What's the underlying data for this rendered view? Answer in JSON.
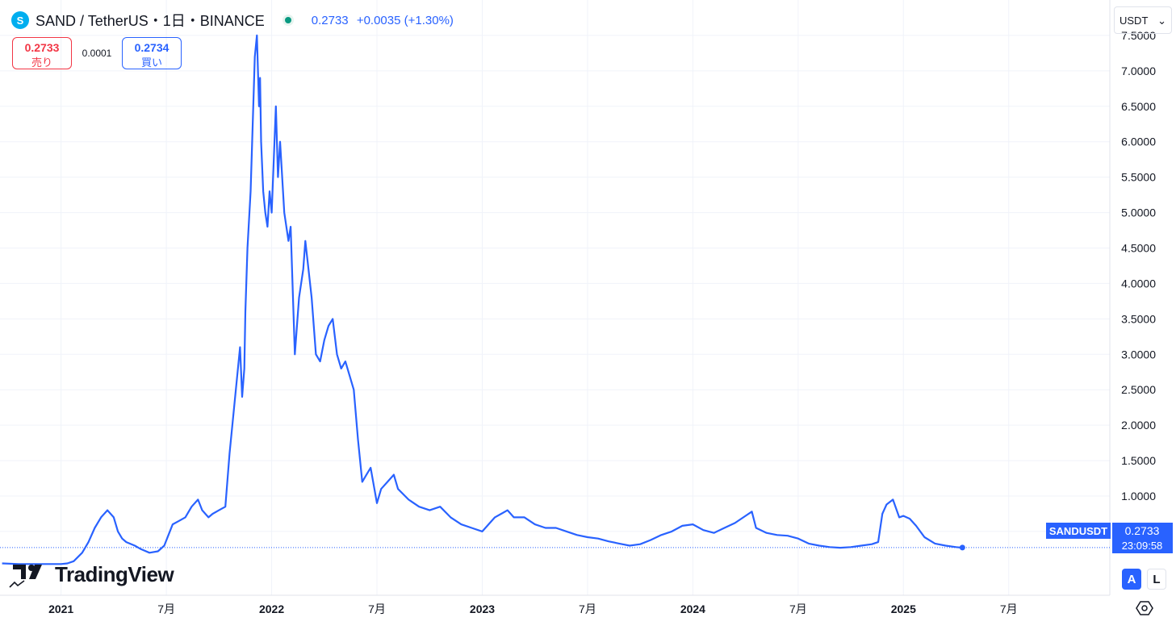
{
  "header": {
    "coin_icon": "S",
    "symbol_line": "SAND / TetherUS・1日・BINANCE",
    "price": "0.2733",
    "change": "+0.0035 (+1.30%)"
  },
  "trade": {
    "sell_price": "0.2733",
    "sell_label": "売り",
    "spread": "0.0001",
    "buy_price": "0.2734",
    "buy_label": "買い"
  },
  "currency_select": {
    "value": "USDT"
  },
  "price_label": {
    "symbol": "SANDUSDT",
    "price": "0.2733",
    "countdown": "23:09:58"
  },
  "brand": {
    "name": "TradingView"
  },
  "scale_buttons": {
    "auto": "A",
    "log": "L"
  },
  "colors": {
    "line": "#2962ff",
    "up": "#089981",
    "sell": "#f23645",
    "grid": "#f0f3fa"
  },
  "icons": [
    "sand-coin-icon",
    "live-dot-icon",
    "chevron-down-icon",
    "tradingview-logo-icon",
    "settings-icon"
  ],
  "chart_data": {
    "type": "line",
    "title": "SAND / TetherUS・1日・BINANCE",
    "xlabel": "",
    "ylabel": "",
    "ylim": [
      -0.4,
      8.0
    ],
    "xlim": [
      2020.71,
      2025.98
    ],
    "grid": true,
    "x_ticks": [
      {
        "x": 2021.0,
        "label": "2021",
        "bold": true
      },
      {
        "x": 2021.5,
        "label": "7月",
        "bold": false
      },
      {
        "x": 2022.0,
        "label": "2022",
        "bold": true
      },
      {
        "x": 2022.5,
        "label": "7月",
        "bold": false
      },
      {
        "x": 2023.0,
        "label": "2023",
        "bold": true
      },
      {
        "x": 2023.5,
        "label": "7月",
        "bold": false
      },
      {
        "x": 2024.0,
        "label": "2024",
        "bold": true
      },
      {
        "x": 2024.5,
        "label": "7月",
        "bold": false
      },
      {
        "x": 2025.0,
        "label": "2025",
        "bold": true
      },
      {
        "x": 2025.5,
        "label": "7月",
        "bold": false
      }
    ],
    "y_ticks": [
      {
        "y": 0.5,
        "label": "0.5000"
      },
      {
        "y": 1.0,
        "label": "1.0000"
      },
      {
        "y": 1.5,
        "label": "1.5000"
      },
      {
        "y": 2.0,
        "label": "2.0000"
      },
      {
        "y": 2.5,
        "label": "2.5000"
      },
      {
        "y": 3.0,
        "label": "3.0000"
      },
      {
        "y": 3.5,
        "label": "3.5000"
      },
      {
        "y": 4.0,
        "label": "4.0000"
      },
      {
        "y": 4.5,
        "label": "4.5000"
      },
      {
        "y": 5.0,
        "label": "5.0000"
      },
      {
        "y": 5.5,
        "label": "5.5000"
      },
      {
        "y": 6.0,
        "label": "6.0000"
      },
      {
        "y": 6.5,
        "label": "6.5000"
      },
      {
        "y": 7.0,
        "label": "7.0000"
      },
      {
        "y": 7.5,
        "label": "7.5000"
      }
    ],
    "last_price": 0.2733,
    "series": [
      {
        "x": [
          2020.72,
          2020.8,
          2020.9,
          2021.0,
          2021.03,
          2021.06,
          2021.1,
          2021.13,
          2021.16,
          2021.19,
          2021.22,
          2021.25,
          2021.27,
          2021.29,
          2021.31,
          2021.35,
          2021.38,
          2021.42,
          2021.46,
          2021.49,
          2021.51,
          2021.53,
          2021.56,
          2021.59,
          2021.62,
          2021.65,
          2021.67,
          2021.7,
          2021.72,
          2021.75,
          2021.78,
          2021.8,
          2021.83,
          2021.85,
          2021.86,
          2021.87,
          2021.875,
          2021.885,
          2021.9,
          2021.92,
          2021.93,
          2021.94,
          2021.945,
          2021.95,
          2021.96,
          2021.97,
          2021.98,
          2021.99,
          2022.0,
          2022.02,
          2022.03,
          2022.04,
          2022.06,
          2022.08,
          2022.09,
          2022.11,
          2022.13,
          2022.15,
          2022.16,
          2022.19,
          2022.21,
          2022.23,
          2022.25,
          2022.27,
          2022.29,
          2022.31,
          2022.33,
          2022.35,
          2022.37,
          2022.39,
          2022.41,
          2022.43,
          2022.45,
          2022.47,
          2022.5,
          2022.52,
          2022.55,
          2022.58,
          2022.6,
          2022.65,
          2022.7,
          2022.75,
          2022.8,
          2022.85,
          2022.9,
          2022.95,
          2023.0,
          2023.03,
          2023.06,
          2023.09,
          2023.12,
          2023.15,
          2023.2,
          2023.25,
          2023.3,
          2023.35,
          2023.4,
          2023.45,
          2023.5,
          2023.55,
          2023.6,
          2023.65,
          2023.7,
          2023.75,
          2023.8,
          2023.85,
          2023.9,
          2023.95,
          2024.0,
          2024.05,
          2024.1,
          2024.15,
          2024.2,
          2024.25,
          2024.28,
          2024.3,
          2024.35,
          2024.4,
          2024.45,
          2024.5,
          2024.55,
          2024.6,
          2024.65,
          2024.7,
          2024.75,
          2024.8,
          2024.85,
          2024.88,
          2024.9,
          2024.92,
          2024.95,
          2024.98,
          2025.0,
          2025.03,
          2025.06,
          2025.1,
          2025.15,
          2025.2,
          2025.25,
          2025.28
        ],
        "values": [
          0.05,
          0.04,
          0.04,
          0.04,
          0.05,
          0.08,
          0.2,
          0.35,
          0.55,
          0.7,
          0.8,
          0.7,
          0.5,
          0.4,
          0.35,
          0.3,
          0.25,
          0.2,
          0.22,
          0.3,
          0.45,
          0.6,
          0.65,
          0.7,
          0.85,
          0.95,
          0.8,
          0.7,
          0.75,
          0.8,
          0.85,
          1.6,
          2.5,
          3.1,
          2.4,
          2.8,
          3.6,
          4.5,
          5.3,
          7.2,
          7.5,
          6.5,
          6.9,
          6.0,
          5.3,
          5.0,
          4.8,
          5.3,
          5.0,
          6.5,
          5.5,
          6.0,
          5.0,
          4.6,
          4.8,
          3.0,
          3.8,
          4.2,
          4.6,
          3.8,
          3.0,
          2.9,
          3.2,
          3.4,
          3.5,
          3.0,
          2.8,
          2.9,
          2.7,
          2.5,
          1.8,
          1.2,
          1.3,
          1.4,
          0.9,
          1.1,
          1.2,
          1.3,
          1.1,
          0.95,
          0.85,
          0.8,
          0.85,
          0.7,
          0.6,
          0.55,
          0.5,
          0.6,
          0.7,
          0.75,
          0.8,
          0.7,
          0.7,
          0.6,
          0.55,
          0.55,
          0.5,
          0.45,
          0.42,
          0.4,
          0.36,
          0.33,
          0.3,
          0.32,
          0.38,
          0.45,
          0.5,
          0.58,
          0.6,
          0.52,
          0.48,
          0.55,
          0.62,
          0.72,
          0.78,
          0.55,
          0.48,
          0.45,
          0.44,
          0.4,
          0.33,
          0.3,
          0.28,
          0.27,
          0.28,
          0.3,
          0.32,
          0.35,
          0.75,
          0.88,
          0.95,
          0.7,
          0.72,
          0.68,
          0.58,
          0.42,
          0.33,
          0.3,
          0.28,
          0.27
        ]
      }
    ]
  }
}
